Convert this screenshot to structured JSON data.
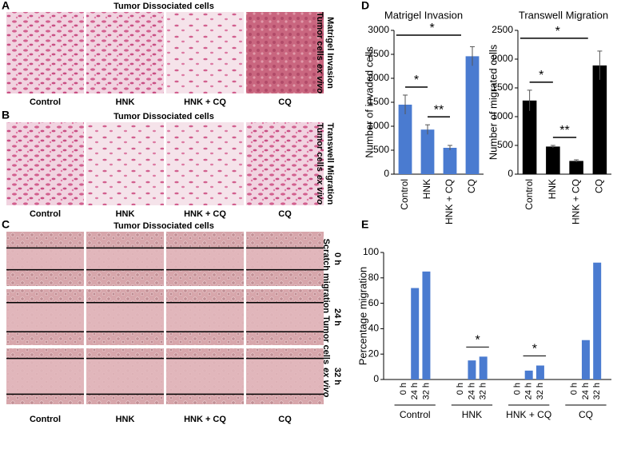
{
  "panels": {
    "A": {
      "label": "A",
      "title": "Tumor Dissociated cells",
      "columns": [
        "Control",
        "HNK",
        "HNK + CQ",
        "CQ"
      ],
      "side_label": [
        "Matrigel Invasion",
        "Tumor cells",
        "ex vivo"
      ]
    },
    "B": {
      "label": "B",
      "title": "Tumor Dissociated cells",
      "columns": [
        "Control",
        "HNK",
        "HNK + CQ",
        "CQ"
      ],
      "side_label": [
        "Transwell Migration",
        "Tumor cells",
        "ex vivo"
      ]
    },
    "C": {
      "label": "C",
      "title": "Tumor Dissociated cells",
      "columns": [
        "Control",
        "HNK",
        "HNK + CQ",
        "CQ"
      ],
      "rows": [
        "0 h",
        "24 h",
        "32 h"
      ],
      "side_label": [
        "Scratch migration Tumor cells",
        "ex vivo"
      ]
    },
    "D": {
      "label": "D"
    },
    "E": {
      "label": "E"
    }
  },
  "chart_data": [
    {
      "type": "bar",
      "title": "Matrigel Invasion",
      "ylabel": "Number of invaded cells",
      "categories": [
        "Control",
        "HNK",
        "HNK + CQ",
        "CQ"
      ],
      "values": [
        1450,
        930,
        550,
        2460
      ],
      "errors": [
        200,
        100,
        50,
        200
      ],
      "color": "#4a7bd0",
      "ylim": [
        0,
        3000
      ],
      "yticks": [
        0,
        500,
        1000,
        1500,
        2000,
        2500,
        3000
      ],
      "annotations": [
        {
          "label": "*",
          "between": [
            "Control",
            "CQ"
          ]
        },
        {
          "label": "*",
          "between": [
            "Control",
            "HNK"
          ]
        },
        {
          "label": "**",
          "between": [
            "HNK",
            "HNK + CQ"
          ]
        }
      ]
    },
    {
      "type": "bar",
      "title": "Transwell Migration",
      "ylabel": "Number of migrated cells",
      "categories": [
        "Control",
        "HNK",
        "HNK + CQ",
        "CQ"
      ],
      "values": [
        1280,
        480,
        230,
        1890
      ],
      "errors": [
        180,
        20,
        20,
        250
      ],
      "color": "#000000",
      "ylim": [
        0,
        2500
      ],
      "yticks": [
        0,
        500,
        1000,
        1500,
        2000,
        2500
      ],
      "annotations": [
        {
          "label": "*",
          "between": [
            "Control",
            "CQ"
          ]
        },
        {
          "label": "*",
          "between": [
            "Control",
            "HNK"
          ]
        },
        {
          "label": "**",
          "between": [
            "HNK",
            "HNK + CQ"
          ]
        }
      ]
    },
    {
      "type": "grouped",
      "ylabel": "Percentage migration",
      "color": "#4a7bd0",
      "ylim": [
        0,
        100
      ],
      "yticks": [
        0,
        20,
        40,
        60,
        80,
        100
      ],
      "groups": [
        {
          "name": "Control",
          "categories": [
            "0 h",
            "24 h",
            "32 h"
          ],
          "values": [
            0,
            72,
            85
          ]
        },
        {
          "name": "HNK",
          "categories": [
            "0 h",
            "24 h",
            "32 h"
          ],
          "values": [
            0,
            15,
            18
          ]
        },
        {
          "name": "HNK + CQ",
          "categories": [
            "0 h",
            "24 h",
            "32 h"
          ],
          "values": [
            0,
            7,
            11
          ]
        },
        {
          "name": "CQ",
          "categories": [
            "0 h",
            "24 h",
            "32 h"
          ],
          "values": [
            0,
            31,
            92
          ]
        }
      ],
      "annotations": [
        {
          "label": "*",
          "group": "HNK"
        },
        {
          "label": "*",
          "group": "HNK + CQ"
        }
      ]
    }
  ]
}
